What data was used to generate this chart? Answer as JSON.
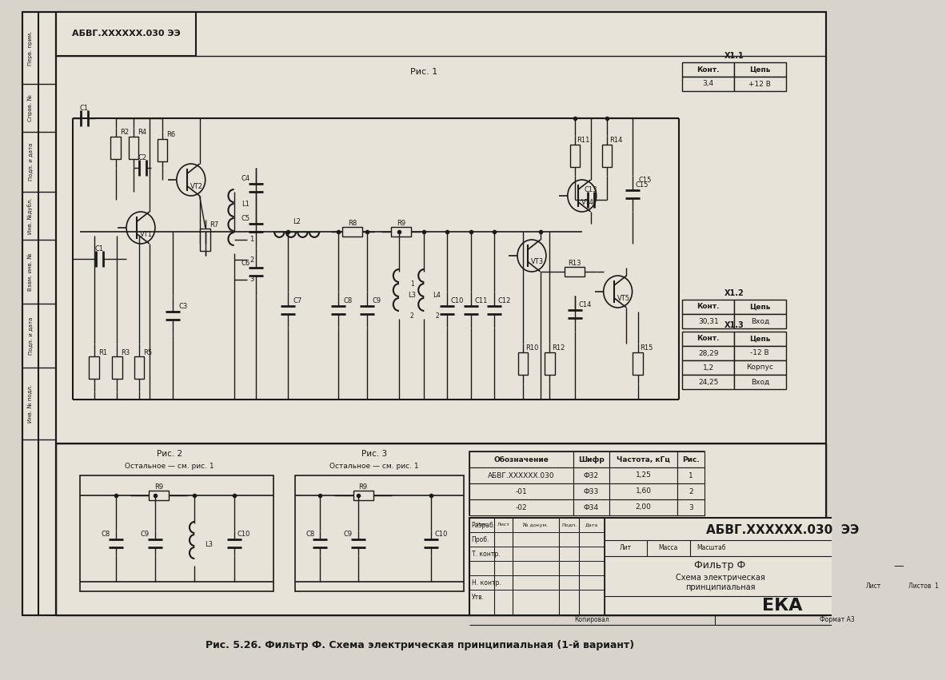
{
  "bg_color": "#d8d4cc",
  "paper_color": "#e8e3d8",
  "line_color": "#1a1a1a",
  "title_bottom": "Рис. 5.26. Фильтр Ф. Схема электрическая принципиальная (1-й вариант)",
  "stamp_title": "АБВГ.XXXXXX.030  ЭЭ",
  "stamp_name1": "Фильтр Ф",
  "stamp_name2": "Схема электрическая",
  "stamp_name3": "принципиальная",
  "stamp_org": "ЕКА",
  "stamp_liter": "Лит",
  "stamp_massa": "Масса",
  "stamp_masshtab": "Масштаб",
  "stamp_list": "Лист",
  "stamp_listov": "Листов  1",
  "stamp_copy": "Копировал",
  "stamp_format": "Формат А3",
  "stamp_izm": "Изм.",
  "stamp_list2": "Лист",
  "stamp_n_dokum": "№ докум.",
  "stamp_podp": "Подп.",
  "stamp_data": "Дата",
  "stamp_razrab": "Разраб.",
  "stamp_prob": "Проб.",
  "stamp_t_kontr": "Т. контр.",
  "stamp_n_kontr": "Н. контр.",
  "stamp_utv": "Утв.",
  "top_stamp_text": "АБВГ.XXXXXX.030 ЭЭ",
  "ris1_label": "Рис. 1",
  "ris2_label": "Рис. 2",
  "ris3_label": "Рис. 3",
  "ris2_sub": "Остальное — см. рис. 1",
  "ris3_sub": "Остальное — см. рис. 1",
  "x1_1_label": "X1.1",
  "x1_2_label": "X1.2",
  "x1_3_label": "X1.3",
  "kont_label": "Конт.",
  "tsep_label": "Цепь",
  "x11_row1": [
    "3,4",
    "+12 В"
  ],
  "x12_row1": [
    "30,31",
    "Вход"
  ],
  "x13_rows": [
    [
      "28,29",
      "-12 В"
    ],
    [
      "1,2",
      "Корпус"
    ],
    [
      "24,25",
      "Вход"
    ]
  ],
  "table_headers": [
    "Обозначение",
    "Шифр",
    "Частота, кГц",
    "Рис."
  ],
  "table_rows": [
    [
      "АБВГ.XXXXXX.030",
      "Ф32",
      "1,25",
      "1"
    ],
    [
      "-01",
      "Ф33",
      "1,60",
      "2"
    ],
    [
      "-02",
      "Ф34",
      "2,00",
      "3"
    ]
  ]
}
